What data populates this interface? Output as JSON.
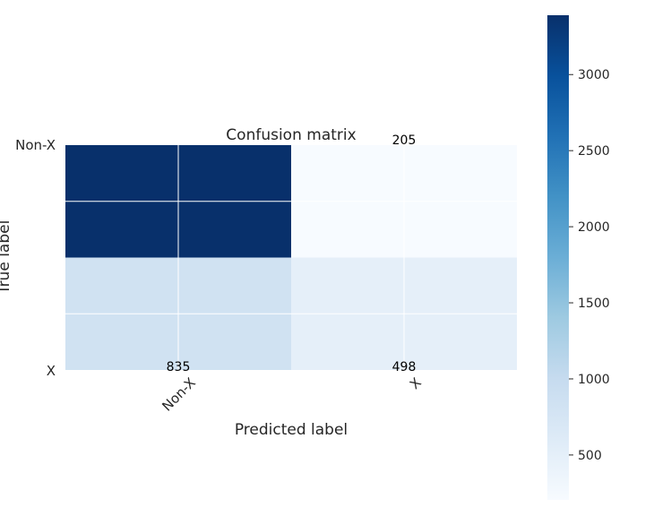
{
  "chart_data": {
    "type": "heatmap",
    "title": "Confusion matrix",
    "xlabel": "Predicted label",
    "ylabel": "True label",
    "x_categories": [
      "Non-X",
      "X"
    ],
    "y_categories": [
      "Non-X",
      "X"
    ],
    "values": [
      [
        3390,
        205
      ],
      [
        835,
        498
      ]
    ],
    "cell_labels": [
      [
        "",
        "205"
      ],
      [
        "835",
        "498"
      ]
    ],
    "colormap": "Blues",
    "colorbar": {
      "range": [
        205,
        3390
      ],
      "ticks": [
        500,
        1000,
        1500,
        2000,
        2500,
        3000
      ],
      "tick_labels": [
        "500",
        "1000",
        "1500",
        "2000",
        "2500",
        "3000"
      ]
    },
    "grid": true
  }
}
